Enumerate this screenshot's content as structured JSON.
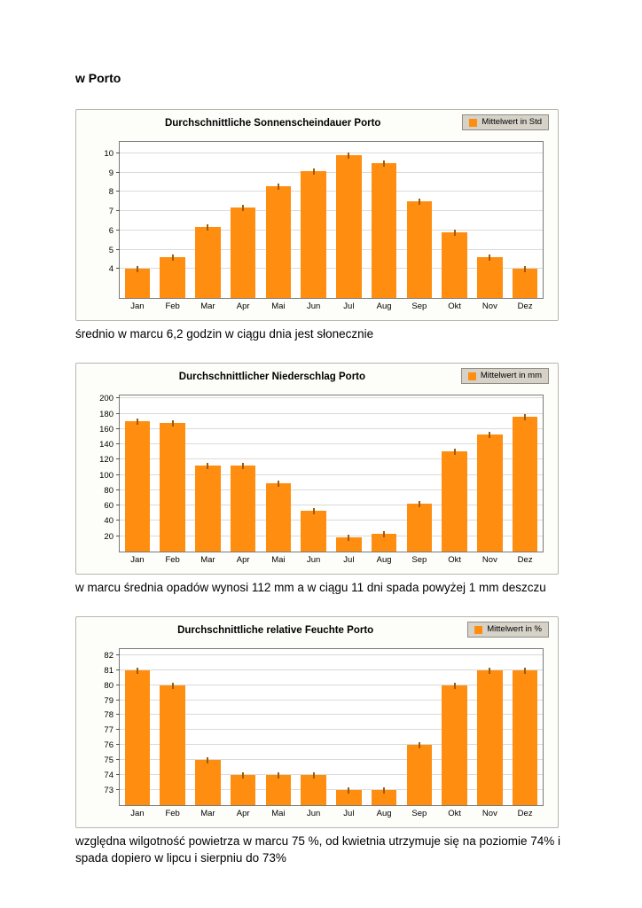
{
  "page": {
    "heading": "w Porto",
    "captions": {
      "sunshine": "średnio w marcu 6,2 godzin w ciągu dnia jest słonecznie",
      "rain": "w marcu średnia opadów wynosi 112 mm a w ciągu 11 dni spada powyżej 1 mm deszczu",
      "humidity": "względna wilgotność powietrza w marcu 75 %, od kwietnia utrzymuje się na poziomie 74% i spada dopiero w lipcu i sierpniu do 73%"
    }
  },
  "chart_data": [
    {
      "id": "sunshine",
      "type": "bar",
      "title": "Durchschnittliche Sonnenscheindauer Porto",
      "legend": "Mittelwert in Std",
      "legend_position": "top-right",
      "grid": true,
      "categories": [
        "Jan",
        "Feb",
        "Mar",
        "Apr",
        "Mai",
        "Jun",
        "Jul",
        "Aug",
        "Sep",
        "Okt",
        "Nov",
        "Dez"
      ],
      "values": [
        4.0,
        4.6,
        6.2,
        7.2,
        8.3,
        9.1,
        9.9,
        9.5,
        7.5,
        5.9,
        4.6,
        4.0
      ],
      "ylim": [
        2.5,
        10.6
      ],
      "yticks": [
        4,
        5,
        6,
        7,
        8,
        9,
        10
      ],
      "bar_color": "#FF8E10"
    },
    {
      "id": "rain",
      "type": "bar",
      "title": "Durchschnittlicher Niederschlag Porto",
      "legend": "Mittelwert in mm",
      "legend_position": "top-right",
      "grid": true,
      "categories": [
        "Jan",
        "Feb",
        "Mar",
        "Apr",
        "Mai",
        "Jun",
        "Jul",
        "Aug",
        "Sep",
        "Okt",
        "Nov",
        "Dez"
      ],
      "values": [
        170,
        168,
        112,
        112,
        89,
        53,
        18,
        23,
        63,
        131,
        153,
        176
      ],
      "ylim": [
        0,
        204
      ],
      "yticks": [
        20,
        40,
        60,
        80,
        100,
        120,
        140,
        160,
        180,
        200
      ],
      "bar_color": "#FF8E10"
    },
    {
      "id": "humidity",
      "type": "bar",
      "title": "Durchschnittliche relative Feuchte Porto",
      "legend": "Mittelwert in %",
      "legend_position": "top-right",
      "grid": true,
      "categories": [
        "Jan",
        "Feb",
        "Mar",
        "Apr",
        "Mai",
        "Jun",
        "Jul",
        "Aug",
        "Sep",
        "Okt",
        "Nov",
        "Dez"
      ],
      "values": [
        81,
        80,
        75,
        74,
        74,
        74,
        73,
        73,
        76,
        80,
        81,
        81
      ],
      "ylim": [
        72,
        82.4
      ],
      "yticks": [
        73,
        74,
        75,
        76,
        77,
        78,
        79,
        80,
        81,
        82
      ],
      "bar_color": "#FF8E10"
    }
  ]
}
